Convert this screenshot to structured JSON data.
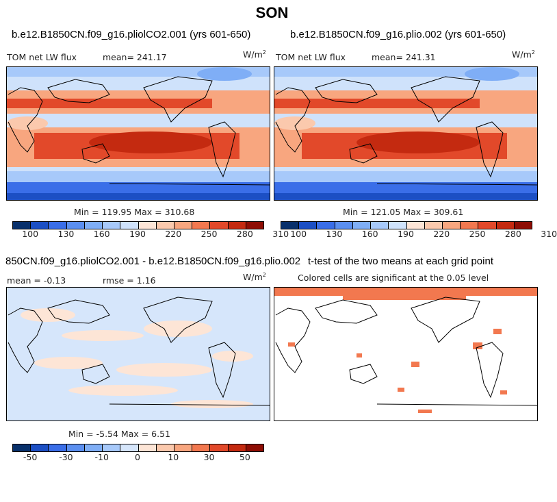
{
  "season": "SON",
  "panels": [
    {
      "title": "b.e12.B1850CN.f09_g16.pliolCO2.001 (yrs 601-650)",
      "subtitle_left": "TOM net LW flux",
      "subtitle_mean": "mean= 241.17",
      "units": "W/m",
      "units_exp": "2",
      "minmax": "Min = 119.95 Max = 310.68",
      "colorbar_ticks": [
        "100",
        "130",
        "160",
        "190",
        "220",
        "250",
        "280",
        "310"
      ]
    },
    {
      "title": "b.e12.B1850CN.f09_g16.plio.002 (yrs 601-650)",
      "subtitle_left": "TOM net LW flux",
      "subtitle_mean": "mean= 241.31",
      "units": "W/m",
      "units_exp": "2",
      "minmax": "Min = 121.05 Max = 309.61",
      "colorbar_ticks": [
        "100",
        "130",
        "160",
        "190",
        "220",
        "250",
        "280",
        "310"
      ]
    },
    {
      "title": "850CN.f09_g16.pliolCO2.001 - b.e12.B1850CN.f09_g16.plio.002",
      "subtitle_left": "mean =  -0.13",
      "subtitle_mean": "rmse =   1.16",
      "units": "W/m",
      "units_exp": "2",
      "minmax": "Min =  -5.54 Max =   6.51",
      "colorbar_ticks": [
        "-50",
        "-30",
        "-10",
        "0",
        "10",
        "30",
        "50"
      ]
    },
    {
      "title": "t-test of the two means at each grid point",
      "subtitle_left": "Colored cells are significant at the 0.05 level"
    }
  ],
  "colors": {
    "abs_scale": [
      "#08306b",
      "#1c4fc4",
      "#3a6ee8",
      "#5b8ff0",
      "#7faef6",
      "#a7c9fa",
      "#cfe2fb",
      "#fde5d6",
      "#fbc9ad",
      "#f8a67f",
      "#f2784f",
      "#e2492a",
      "#c42a10",
      "#8e0d04"
    ],
    "diff_scale": [
      "#08306b",
      "#1c4fc4",
      "#3a6ee8",
      "#5b8ff0",
      "#7faef6",
      "#a7c9fa",
      "#d6e6fb",
      "#fde5d6",
      "#fbc9ad",
      "#f8a67f",
      "#f2784f",
      "#e2492a",
      "#c42a10",
      "#8e0d04"
    ],
    "signif": "#f2784f"
  }
}
